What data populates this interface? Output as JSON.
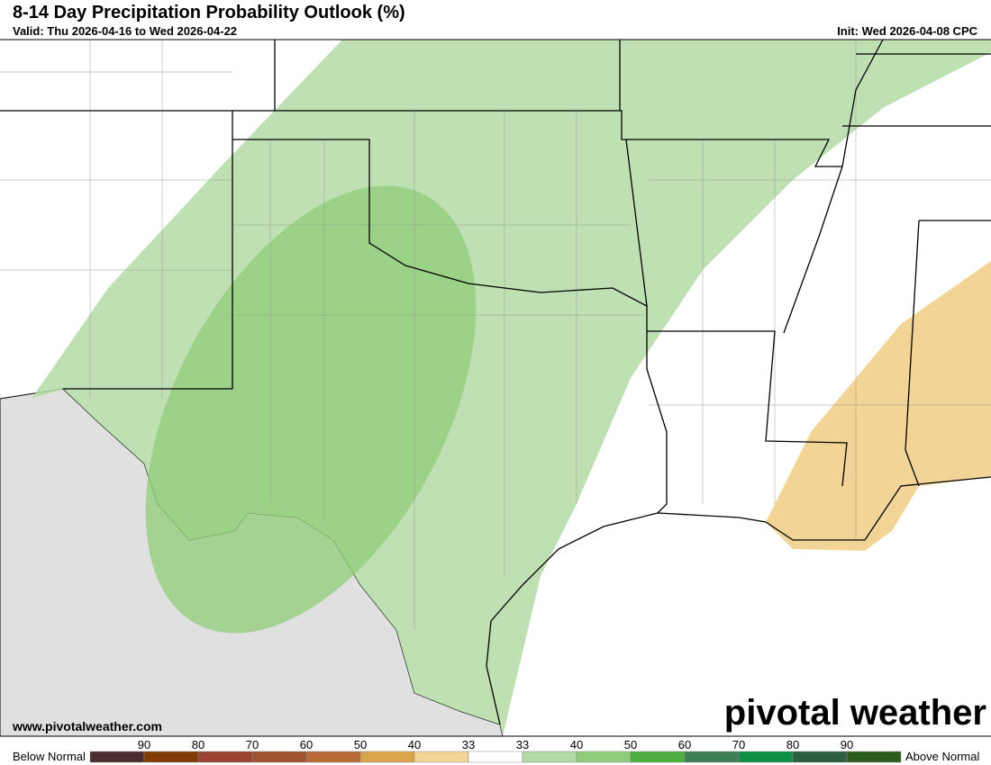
{
  "header": {
    "title": "8-14 Day Precipitation Probability Outlook (%)",
    "valid": "Valid: Thu 2026-04-16 to Wed 2026-04-22",
    "init": "Init: Wed 2026-04-08 CPC"
  },
  "watermark": "www.pivotalweather.com",
  "logo": "pivotal weather",
  "legend": {
    "left": "Below Normal",
    "right": "Above Normal",
    "labels": [
      90,
      80,
      70,
      60,
      50,
      40,
      33,
      33,
      40,
      50,
      60,
      70,
      80,
      90
    ],
    "colors": [
      "#4f2c2c",
      "#7f3b06",
      "#9b4330",
      "#a0522d",
      "#b86a38",
      "#d9a44c",
      "#f2d497",
      "#ffffff",
      "#b3dba6",
      "#90cd7a",
      "#4cae3f",
      "#3c7e55",
      "#0b9044",
      "#2c5f42",
      "#2d5c1f"
    ]
  }
}
